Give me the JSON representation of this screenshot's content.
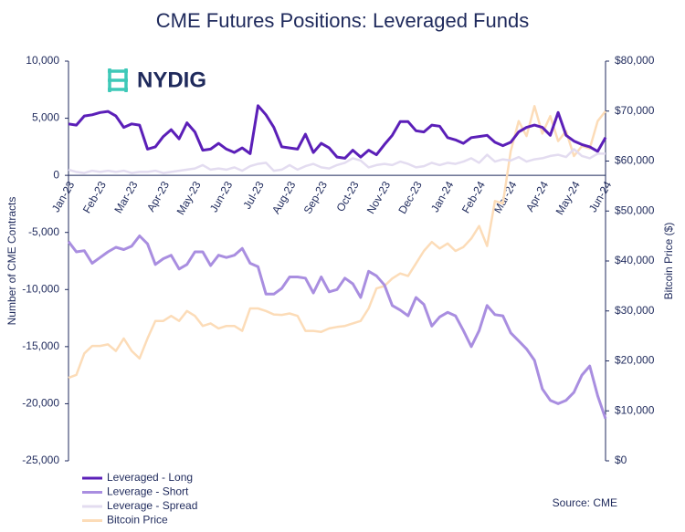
{
  "chart_data": {
    "type": "line",
    "title": "CME Futures Positions: Leveraged Funds",
    "logo": "NYDIG",
    "ylabel": "Number of CME Contracts",
    "y2label": "Bitcoin Price ($)",
    "source": "Source: CME",
    "legend": "bottom-left",
    "categories": [
      "Jan-23",
      null,
      null,
      null,
      "Feb-23",
      null,
      null,
      null,
      "Mar-23",
      null,
      null,
      null,
      "Apr-23",
      null,
      null,
      null,
      "May-23",
      null,
      null,
      null,
      "Jun-23",
      null,
      null,
      null,
      "Jul-23",
      null,
      null,
      null,
      "Aug-23",
      null,
      null,
      null,
      "Sep-23",
      null,
      null,
      null,
      "Oct-23",
      null,
      null,
      null,
      "Nov-23",
      null,
      null,
      null,
      "Dec-23",
      null,
      null,
      null,
      "Jan-24",
      null,
      null,
      null,
      "Feb-24",
      null,
      null,
      null,
      "Mar-24",
      null,
      null,
      null,
      "Apr-24",
      null,
      null,
      null,
      "May-24",
      null,
      null,
      null,
      "Jun-24"
    ],
    "ylim": [
      -25000,
      10000
    ],
    "yticks": [
      {
        "value": 10000,
        "label": "10,000"
      },
      {
        "value": 5000,
        "label": "5,000"
      },
      0,
      {
        "value": -5000,
        "label": "-5,000"
      },
      {
        "value": -10000,
        "label": "-10,000"
      },
      {
        "value": -15000,
        "label": "-15,000"
      },
      {
        "value": -20000,
        "label": "-20,000"
      },
      {
        "value": -25000,
        "label": "-25,000"
      }
    ],
    "y2lim": [
      0,
      80000
    ],
    "y2ticks": [
      {
        "value": 80000,
        "label": "$80,000"
      },
      {
        "value": 70000,
        "label": "$70,000"
      },
      {
        "value": 60000,
        "label": "$60,000"
      },
      {
        "value": 50000,
        "label": "$50,000"
      },
      {
        "value": 40000,
        "label": "$40,000"
      },
      {
        "value": 30000,
        "label": "$30,000"
      },
      {
        "value": 20000,
        "label": "$20,000"
      },
      {
        "value": 10000,
        "label": "$10,000"
      },
      {
        "value": 0,
        "label": "$0"
      }
    ],
    "series": [
      {
        "name": "Leveraged - Long",
        "color": "#5b1fb8",
        "width": 3,
        "values": [
          4500,
          4400,
          5200,
          5300,
          5500,
          5600,
          5200,
          4200,
          4500,
          4400,
          2300,
          2500,
          3400,
          4000,
          3200,
          4600,
          3800,
          2200,
          2300,
          2800,
          2300,
          2000,
          2400,
          1900,
          6100,
          5300,
          4200,
          2500,
          2400,
          2300,
          3600,
          2000,
          2800,
          2400,
          1600,
          1500,
          2200,
          1600,
          2200,
          1800,
          2700,
          3500,
          4700,
          4700,
          3900,
          3800,
          4400,
          4300,
          3300,
          3100,
          2800,
          3300,
          3400,
          3500,
          2900,
          2600,
          2900,
          3800,
          4200,
          4400,
          4200,
          3500,
          5500,
          3500,
          3000,
          2700,
          2500,
          2100,
          3300
        ]
      },
      {
        "name": "Leverage - Short",
        "color": "#a98ee0",
        "width": 3,
        "values": [
          -5800,
          -6700,
          -6600,
          -7700,
          -7200,
          -6700,
          -6300,
          -6500,
          -6200,
          -5300,
          -6000,
          -7800,
          -7300,
          -7000,
          -8200,
          -7800,
          -6700,
          -6700,
          -7900,
          -7000,
          -7200,
          -7000,
          -6400,
          -7700,
          -8000,
          -10400,
          -10400,
          -9900,
          -8900,
          -8900,
          -9000,
          -10300,
          -8900,
          -10200,
          -10000,
          -9000,
          -9500,
          -10700,
          -8400,
          -8800,
          -9600,
          -11400,
          -11800,
          -12300,
          -10700,
          -11300,
          -13200,
          -12400,
          -12000,
          -12300,
          -13600,
          -15000,
          -13600,
          -11400,
          -12200,
          -12300,
          -13800,
          -14500,
          -15200,
          -16200,
          -18700,
          -19700,
          -20000,
          -19700,
          -19000,
          -17500,
          -16700,
          -19300,
          -21300
        ]
      },
      {
        "name": "Leverage - Spread",
        "color": "#e3dcf0",
        "width": 2.5,
        "values": [
          500,
          300,
          200,
          400,
          300,
          400,
          300,
          400,
          200,
          300,
          300,
          400,
          200,
          300,
          400,
          500,
          600,
          900,
          500,
          600,
          500,
          700,
          400,
          800,
          1000,
          1100,
          400,
          500,
          900,
          500,
          800,
          1000,
          700,
          600,
          900,
          1100,
          1500,
          1300,
          700,
          900,
          1000,
          900,
          1200,
          1000,
          700,
          800,
          1100,
          900,
          1100,
          1000,
          1200,
          1500,
          1100,
          1800,
          1200,
          1400,
          1300,
          1600,
          1200,
          1400,
          1500,
          1700,
          1800,
          1600,
          2300,
          1700,
          1500,
          1900,
          1900
        ]
      },
      {
        "name": "Bitcoin Price",
        "color": "#fcdcb8",
        "width": 2.5,
        "axis": "y2",
        "values": [
          16600,
          17200,
          21500,
          23000,
          23000,
          23300,
          22000,
          24500,
          22000,
          20500,
          24500,
          28000,
          28000,
          29000,
          28000,
          30000,
          29000,
          27000,
          27500,
          26500,
          27000,
          27000,
          26000,
          30500,
          30500,
          30000,
          29300,
          29200,
          29500,
          29000,
          26000,
          26000,
          25800,
          26500,
          26800,
          27000,
          27500,
          28000,
          30500,
          34500,
          35000,
          36500,
          37500,
          37000,
          39500,
          42000,
          43800,
          42500,
          43500,
          42000,
          42800,
          44500,
          47000,
          43000,
          52000,
          51500,
          62000,
          68000,
          65000,
          71000,
          65500,
          69000,
          64000,
          66000,
          61000,
          63000,
          62500,
          68000,
          70000
        ]
      }
    ]
  }
}
